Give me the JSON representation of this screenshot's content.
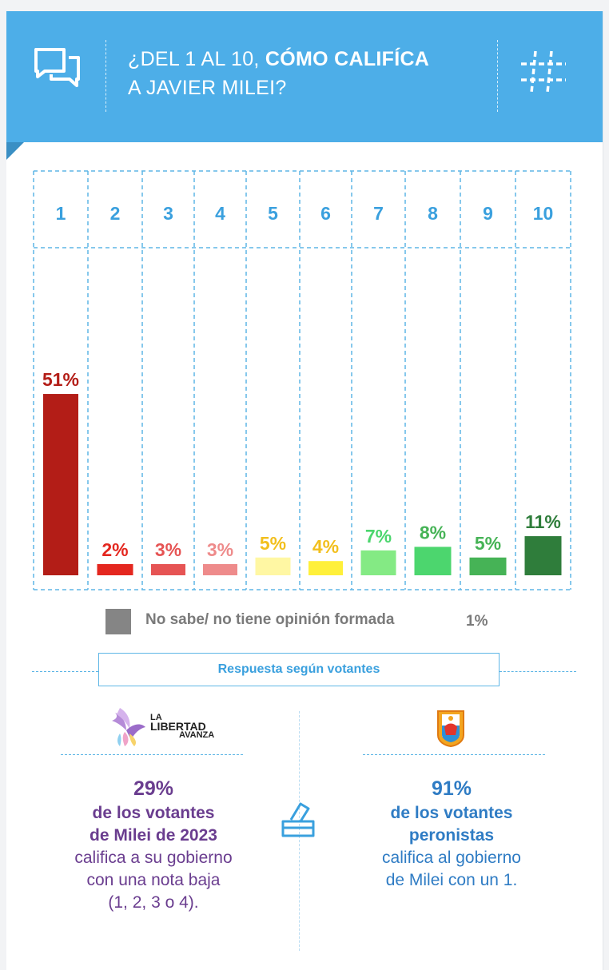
{
  "header": {
    "title_light": "¿DEL 1 AL 10, ",
    "title_bold": "CÓMO CALIFÍCA",
    "title_line2": "A JAVIER MILEI?",
    "color": "#4daee8",
    "left_icon": "chat-bubbles-icon",
    "right_icon": "hashtag-icon"
  },
  "chart_data": {
    "type": "bar",
    "categories": [
      "1",
      "2",
      "3",
      "4",
      "5",
      "6",
      "7",
      "8",
      "9",
      "10"
    ],
    "values": [
      51,
      2,
      3,
      3,
      5,
      4,
      7,
      8,
      5,
      11
    ],
    "value_labels": [
      "51%",
      "2%",
      "3%",
      "3%",
      "5%",
      "4%",
      "7%",
      "8%",
      "5%",
      "11%"
    ],
    "colors": [
      "#b31d17",
      "#e4271f",
      "#e65454",
      "#ee8b8b",
      "#fff7a3",
      "#fff03a",
      "#84ea84",
      "#4cd66e",
      "#46b356",
      "#2f7d3b"
    ],
    "label_colors": [
      "#b31d17",
      "#e4271f",
      "#e65454",
      "#ee8b8b",
      "#f2bf1d",
      "#f2bf1d",
      "#4cd66e",
      "#46b356",
      "#46b356",
      "#2f7d3b"
    ],
    "title": "",
    "xlabel": "",
    "ylabel": "",
    "grid": false,
    "legend": [
      {
        "label": "No sabe/ no tiene opinión formada",
        "value": "1%",
        "color": "#858585"
      }
    ]
  },
  "section": {
    "title": "Respuesta según votantes"
  },
  "left": {
    "logo_text_small": "LA",
    "logo_text_big": "LIBERTAD",
    "logo_text_sub": "AVANZA",
    "pct": "29%",
    "line1": "de los votantes",
    "line2": "de Milei de 2023",
    "line3": "califica a su gobierno",
    "line4": "con una nota baja",
    "line5": "(1, 2, 3 o 4)."
  },
  "right": {
    "pct": "91%",
    "line1": "de los votantes",
    "line2": "peronistas",
    "line3": "califica al gobierno",
    "line4": "de Milei con un 1."
  },
  "center_icon": "ballot-box-icon"
}
